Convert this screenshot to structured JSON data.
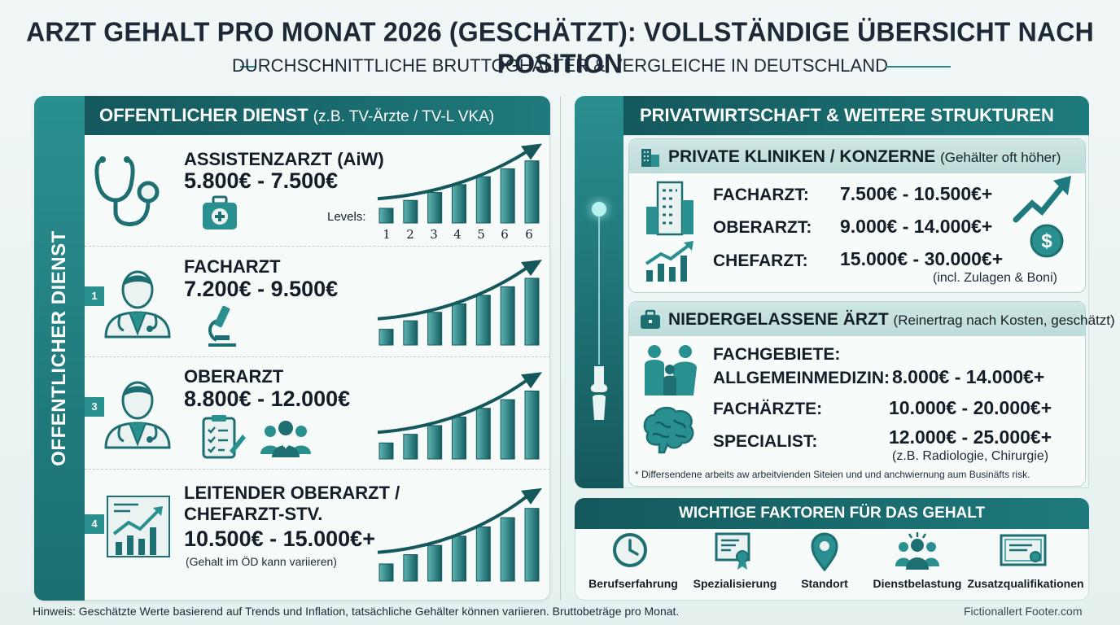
{
  "title": "ARZT GEHALT PRO MONAT 2026 (GESCHÄTZT): VOLLSTÄNDIGE ÜBERSICHT NACH POSITION",
  "subtitle": "DURCHSCHNITTLICHE BRUTTOGHÄLTER & VERGLEICHE IN DEUTSCHLAND",
  "left": {
    "side_label": "OFFENTLICHER DIENST",
    "header": "OFFENTLICHER DIENST",
    "header_note": "(z.B. TV-Ärzte / TV-L VKA)",
    "levels_label": "Levels:",
    "levels": [
      "1",
      "2",
      "3",
      "4",
      "5",
      "6",
      "6"
    ],
    "badges": [
      "1",
      "3",
      "4"
    ],
    "positions": [
      {
        "title": "ASSISTENZARZT (AiW)",
        "range": "5.800€ - 7.500€",
        "note": ""
      },
      {
        "title": "FACHARZT",
        "range": "7.200€ - 9.500€",
        "note": ""
      },
      {
        "title": "OBERARZT",
        "range": "8.800€ - 12.000€",
        "note": ""
      },
      {
        "title": "LEITENDER OBERARZT /",
        "title2": "CHEFARZT-STV.",
        "range": "10.500€ - 15.000€+",
        "note": "(Gehalt im ÖD kann variieren)"
      }
    ]
  },
  "right": {
    "header": "PRIVATWIRTSCHAFT & WEITERE STRUKTUREN",
    "private": {
      "head": "PRIVATE KLINIKEN / KONZERNE",
      "head_note": "(Gehälter oft höher)",
      "rows": [
        {
          "label": "FACHARZT:",
          "value": "7.500€ - 10.500€+"
        },
        {
          "label": "OBERARZT:",
          "value": "9.000€ - 14.000€+"
        },
        {
          "label": "CHEFARZT:",
          "value": "15.000€ - 30.000€+"
        }
      ],
      "note": "(incl. Zulagen & Boni)"
    },
    "niedergelassen": {
      "head": "NIEDERGELASSENE ÄRZT",
      "head_note": "(Reinertrag nach Kosten, geschätzt)",
      "fach_label": "FACHGEBIETE:",
      "rows": [
        {
          "label": "ALLGEMEINMEDIZIN:",
          "value": "8.000€ - 14.000€+"
        },
        {
          "label": "FACHÄRZTE:",
          "value": "10.000€ - 20.000€+"
        },
        {
          "label": "SPECIALIST:",
          "value": "12.000€ - 25.000€+"
        }
      ],
      "note": "(z.B. Radiologie, Chirurgie)",
      "disclaimer": "* Differsendene arbeits aw arbeitvienden Siteien und und anchwiernung aum Businäfts risk."
    },
    "factors": {
      "head": "WICHTIGE FAKTOREN FÜR DAS GEHALT",
      "items": [
        "Berufserfahrung",
        "Spezialisierung",
        "Standort",
        "Dienstbelastung",
        "Zusatzqualifikationen"
      ]
    }
  },
  "footer": {
    "note": "Hinweis: Geschätzte Werte basierend auf Trends und Inflation, tatsächliche Gehälter können variieren. Bruttobeträge pro Monat.",
    "source": "Fictionallert Footer.com"
  },
  "colors": {
    "teal_dark": "#14585c",
    "teal": "#2a8f8f",
    "bar_light": "#5fb5b3",
    "bar_dark": "#135d60"
  }
}
